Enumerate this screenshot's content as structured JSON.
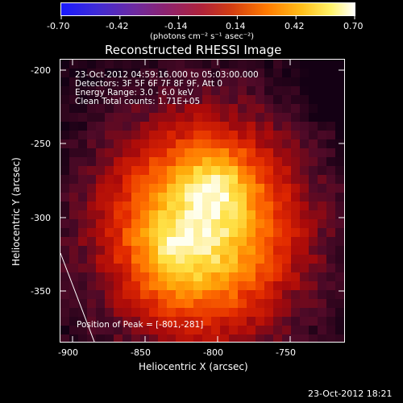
{
  "colorbar": {
    "ticks": [
      "-0.70",
      "-0.42",
      "-0.14",
      "0.14",
      "0.42",
      "0.70"
    ],
    "unit_label": "(photons cm⁻² s⁻¹ asec⁻²)"
  },
  "title": "Reconstructed RHESSI Image",
  "info": {
    "time_range": "23-Oct-2012 04:59:16.000 to 05:03:00.000",
    "detectors": "Detectors: 3F 5F 6F 7F 8F 9F, Att 0",
    "energy": "Energy Range: 3.0 - 6.0 keV",
    "method": "Clean     Total counts: 1.71E+05"
  },
  "peak": "Position of Peak = [-801,-281]",
  "axes": {
    "xlabel": "Heliocentric X (arcsec)",
    "ylabel": "Heliocentric Y (arcsec)",
    "xticks": [
      "-900",
      "-850",
      "-800",
      "-750"
    ],
    "yticks": [
      "-200",
      "-250",
      "-300",
      "-350"
    ]
  },
  "timestamp": "23-Oct-2012 18:21",
  "image": {
    "colormap": "red-temperature",
    "peak_level": 0.7
  }
}
